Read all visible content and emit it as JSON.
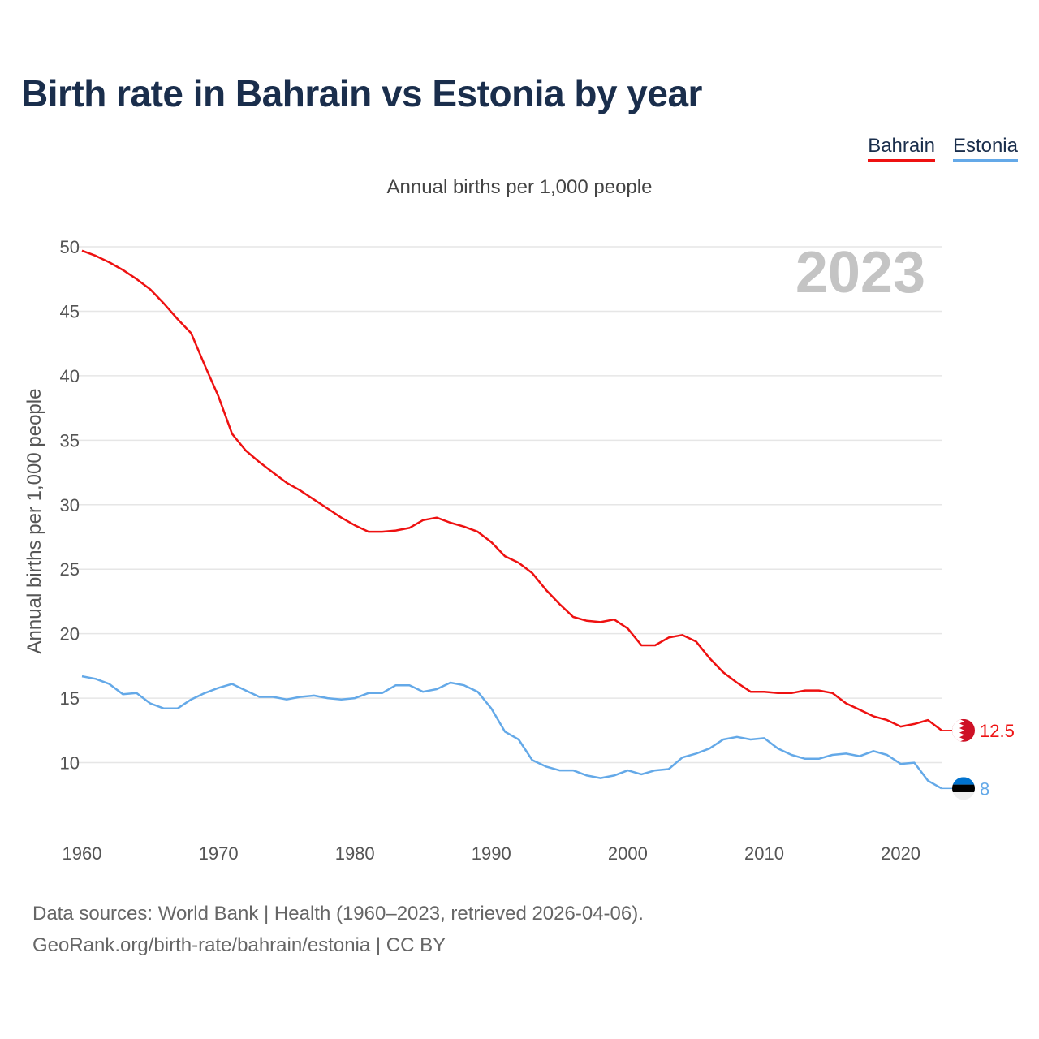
{
  "title": "Birth rate in Bahrain vs Estonia by year",
  "subtitle": "Annual births per 1,000 people",
  "footer": {
    "line1": "Data sources: World Bank | Health (1960–2023, retrieved 2026-04-06).",
    "line2": "GeoRank.org/birth-rate/bahrain/estonia | CC BY"
  },
  "colors": {
    "Bahrain": "#ee1111",
    "Estonia": "#64a9e8",
    "grid": "#e6e6e6",
    "year_watermark": "#c4c4c4"
  },
  "chart_data": {
    "type": "line",
    "title": "Birth rate in Bahrain vs Estonia by year",
    "xlabel": "",
    "ylabel": "Annual births per 1,000 people",
    "xlim": [
      1960,
      2023
    ],
    "ylim": [
      5,
      50
    ],
    "x_ticks": [
      1960,
      1970,
      1980,
      1990,
      2000,
      2010,
      2020
    ],
    "y_ticks": [
      10,
      15,
      20,
      25,
      30,
      35,
      40,
      45,
      50
    ],
    "current_year": "2023",
    "grid": true,
    "legend_position": "top-right",
    "x": [
      1960,
      1961,
      1962,
      1963,
      1964,
      1965,
      1966,
      1967,
      1968,
      1969,
      1970,
      1971,
      1972,
      1973,
      1974,
      1975,
      1976,
      1977,
      1978,
      1979,
      1980,
      1981,
      1982,
      1983,
      1984,
      1985,
      1986,
      1987,
      1988,
      1989,
      1990,
      1991,
      1992,
      1993,
      1994,
      1995,
      1996,
      1997,
      1998,
      1999,
      2000,
      2001,
      2002,
      2003,
      2004,
      2005,
      2006,
      2007,
      2008,
      2009,
      2010,
      2011,
      2012,
      2013,
      2014,
      2015,
      2016,
      2017,
      2018,
      2019,
      2020,
      2021,
      2022,
      2023
    ],
    "series": [
      {
        "name": "Bahrain",
        "end_label": "12.5",
        "values": [
          49.7,
          49.3,
          48.8,
          48.2,
          47.5,
          46.7,
          45.6,
          44.4,
          43.3,
          40.8,
          38.4,
          35.5,
          34.2,
          33.3,
          32.5,
          31.7,
          31.1,
          30.4,
          29.7,
          29.0,
          28.4,
          27.9,
          27.9,
          28.0,
          28.2,
          28.8,
          29.0,
          28.6,
          28.3,
          27.9,
          27.1,
          26.0,
          25.5,
          24.7,
          23.4,
          22.3,
          21.3,
          21.0,
          20.9,
          21.1,
          20.4,
          19.1,
          19.1,
          19.7,
          19.9,
          19.4,
          18.1,
          17.0,
          16.2,
          15.5,
          15.5,
          15.4,
          15.4,
          15.6,
          15.6,
          15.4,
          14.6,
          14.1,
          13.6,
          13.3,
          12.8,
          13.0,
          13.3,
          12.5
        ]
      },
      {
        "name": "Estonia",
        "end_label": "8",
        "values": [
          16.7,
          16.5,
          16.1,
          15.3,
          15.4,
          14.6,
          14.2,
          14.2,
          14.9,
          15.4,
          15.8,
          16.1,
          15.6,
          15.1,
          15.1,
          14.9,
          15.1,
          15.2,
          15.0,
          14.9,
          15.0,
          15.4,
          15.4,
          16.0,
          16.0,
          15.5,
          15.7,
          16.2,
          16.0,
          15.5,
          14.2,
          12.4,
          11.8,
          10.2,
          9.7,
          9.4,
          9.4,
          9.0,
          8.8,
          9.0,
          9.4,
          9.1,
          9.4,
          9.5,
          10.4,
          10.7,
          11.1,
          11.8,
          12.0,
          11.8,
          11.9,
          11.1,
          10.6,
          10.3,
          10.3,
          10.6,
          10.7,
          10.5,
          10.9,
          10.6,
          9.9,
          10.0,
          8.6,
          8.0
        ]
      }
    ]
  }
}
